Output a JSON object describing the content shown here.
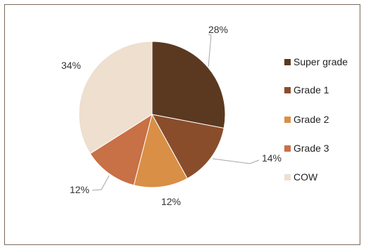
{
  "chart_data": {
    "type": "pie",
    "title": "",
    "categories": [
      "Super grade",
      "Grade 1",
      "Grade 2",
      "Grade 3",
      "COW"
    ],
    "values": [
      28,
      14,
      12,
      12,
      34
    ],
    "value_labels": [
      "28%",
      "14%",
      "12%",
      "12%",
      "34%"
    ],
    "unit": "%",
    "colors": [
      "#5b3921",
      "#8a4d2b",
      "#d98f45",
      "#c87046",
      "#eedfce"
    ],
    "legend_position": "right"
  }
}
